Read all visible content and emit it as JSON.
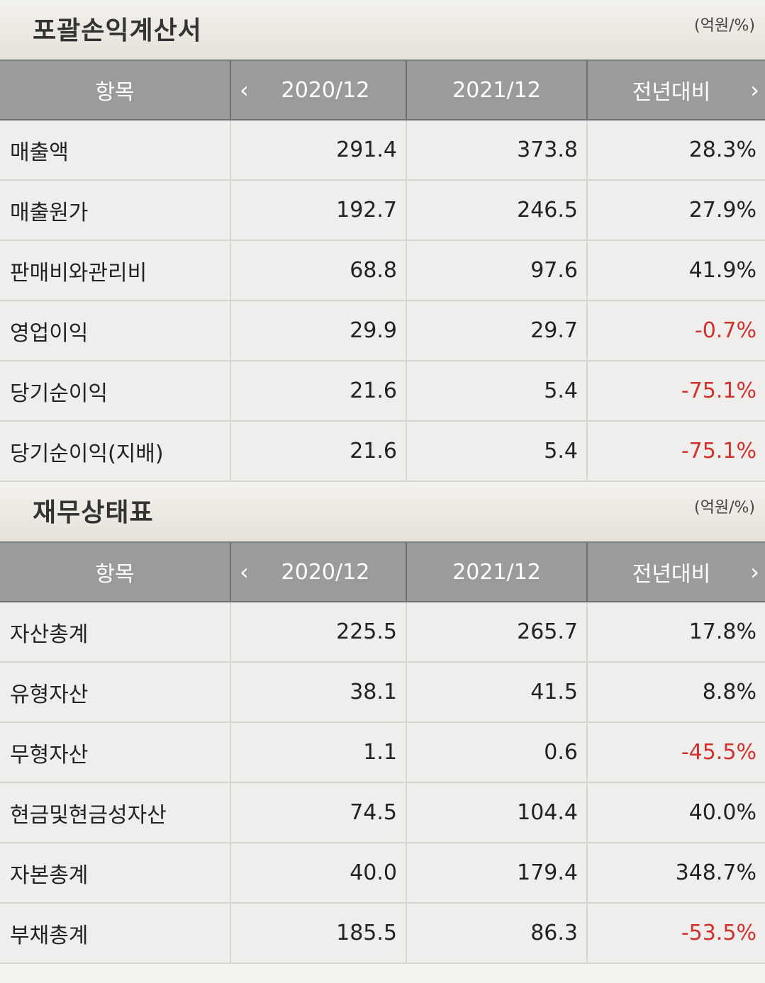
{
  "income": {
    "title": "포괄손익계산서",
    "unit": "(억원/%)",
    "headers": {
      "item": "항목",
      "y1": "2020/12",
      "y2": "2021/12",
      "yoy": "전년대비"
    },
    "rows": [
      {
        "label": "매출액",
        "y1": "291.4",
        "y2": "373.8",
        "yoy": "28.3%"
      },
      {
        "label": "매출원가",
        "y1": "192.7",
        "y2": "246.5",
        "yoy": "27.9%"
      },
      {
        "label": "판매비와관리비",
        "y1": "68.8",
        "y2": "97.6",
        "yoy": "41.9%"
      },
      {
        "label": "영업이익",
        "y1": "29.9",
        "y2": "29.7",
        "yoy": "-0.7%"
      },
      {
        "label": "당기순이익",
        "y1": "21.6",
        "y2": "5.4",
        "yoy": "-75.1%"
      },
      {
        "label": "당기순이익(지배)",
        "y1": "21.6",
        "y2": "5.4",
        "yoy": "-75.1%"
      }
    ]
  },
  "balance": {
    "title": "재무상태표",
    "unit": "(억원/%)",
    "headers": {
      "item": "항목",
      "y1": "2020/12",
      "y2": "2021/12",
      "yoy": "전년대비"
    },
    "rows": [
      {
        "label": "자산총계",
        "y1": "225.5",
        "y2": "265.7",
        "yoy": "17.8%"
      },
      {
        "label": "유형자산",
        "y1": "38.1",
        "y2": "41.5",
        "yoy": "8.8%"
      },
      {
        "label": "무형자산",
        "y1": "1.1",
        "y2": "0.6",
        "yoy": "-45.5%"
      },
      {
        "label": "현금및현금성자산",
        "y1": "74.5",
        "y2": "104.4",
        "yoy": "40.0%"
      },
      {
        "label": "자본총계",
        "y1": "40.0",
        "y2": "179.4",
        "yoy": "348.7%"
      },
      {
        "label": "부채총계",
        "y1": "185.5",
        "y2": "86.3",
        "yoy": "-53.5%"
      }
    ]
  },
  "icons": {
    "prev": "chevron-left-icon",
    "next": "chevron-right-icon"
  },
  "colors": {
    "negative": "#d0312d",
    "header_bg": "#9a9b9d"
  }
}
